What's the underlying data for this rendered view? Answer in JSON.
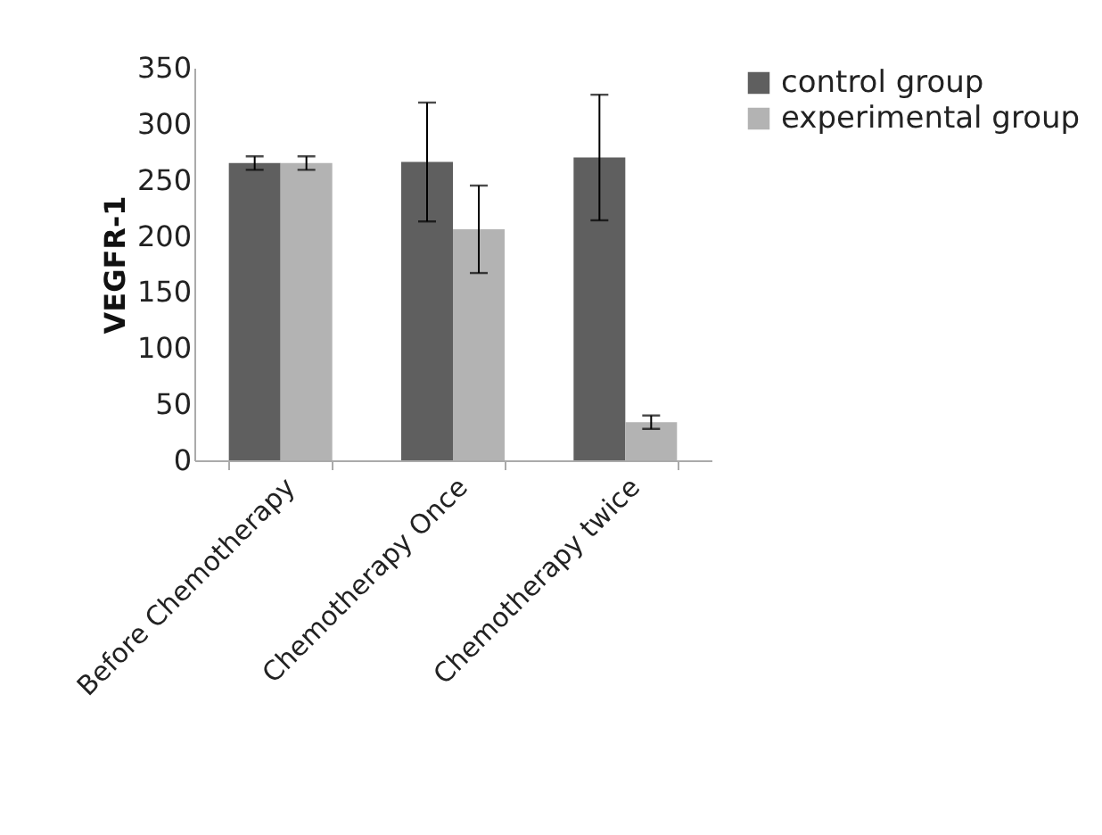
{
  "chart_data": {
    "type": "bar",
    "ylabel": "VEGFR-1",
    "categories": [
      "Before Chemotherapy",
      "Chemotherapy Once",
      "Chemotherapy twice"
    ],
    "series": [
      {
        "name": "control group",
        "color": "#5f5f5f",
        "values": [
          265,
          266,
          270
        ],
        "errors": [
          6,
          53,
          56
        ]
      },
      {
        "name": "experimental group",
        "color": "#b3b3b3",
        "values": [
          265,
          206,
          34
        ],
        "errors": [
          6,
          39,
          6
        ]
      }
    ],
    "ylim": [
      0,
      350
    ],
    "yticks": [
      0,
      50,
      100,
      150,
      200,
      250,
      300,
      350
    ],
    "grid": false,
    "legend": "right"
  }
}
